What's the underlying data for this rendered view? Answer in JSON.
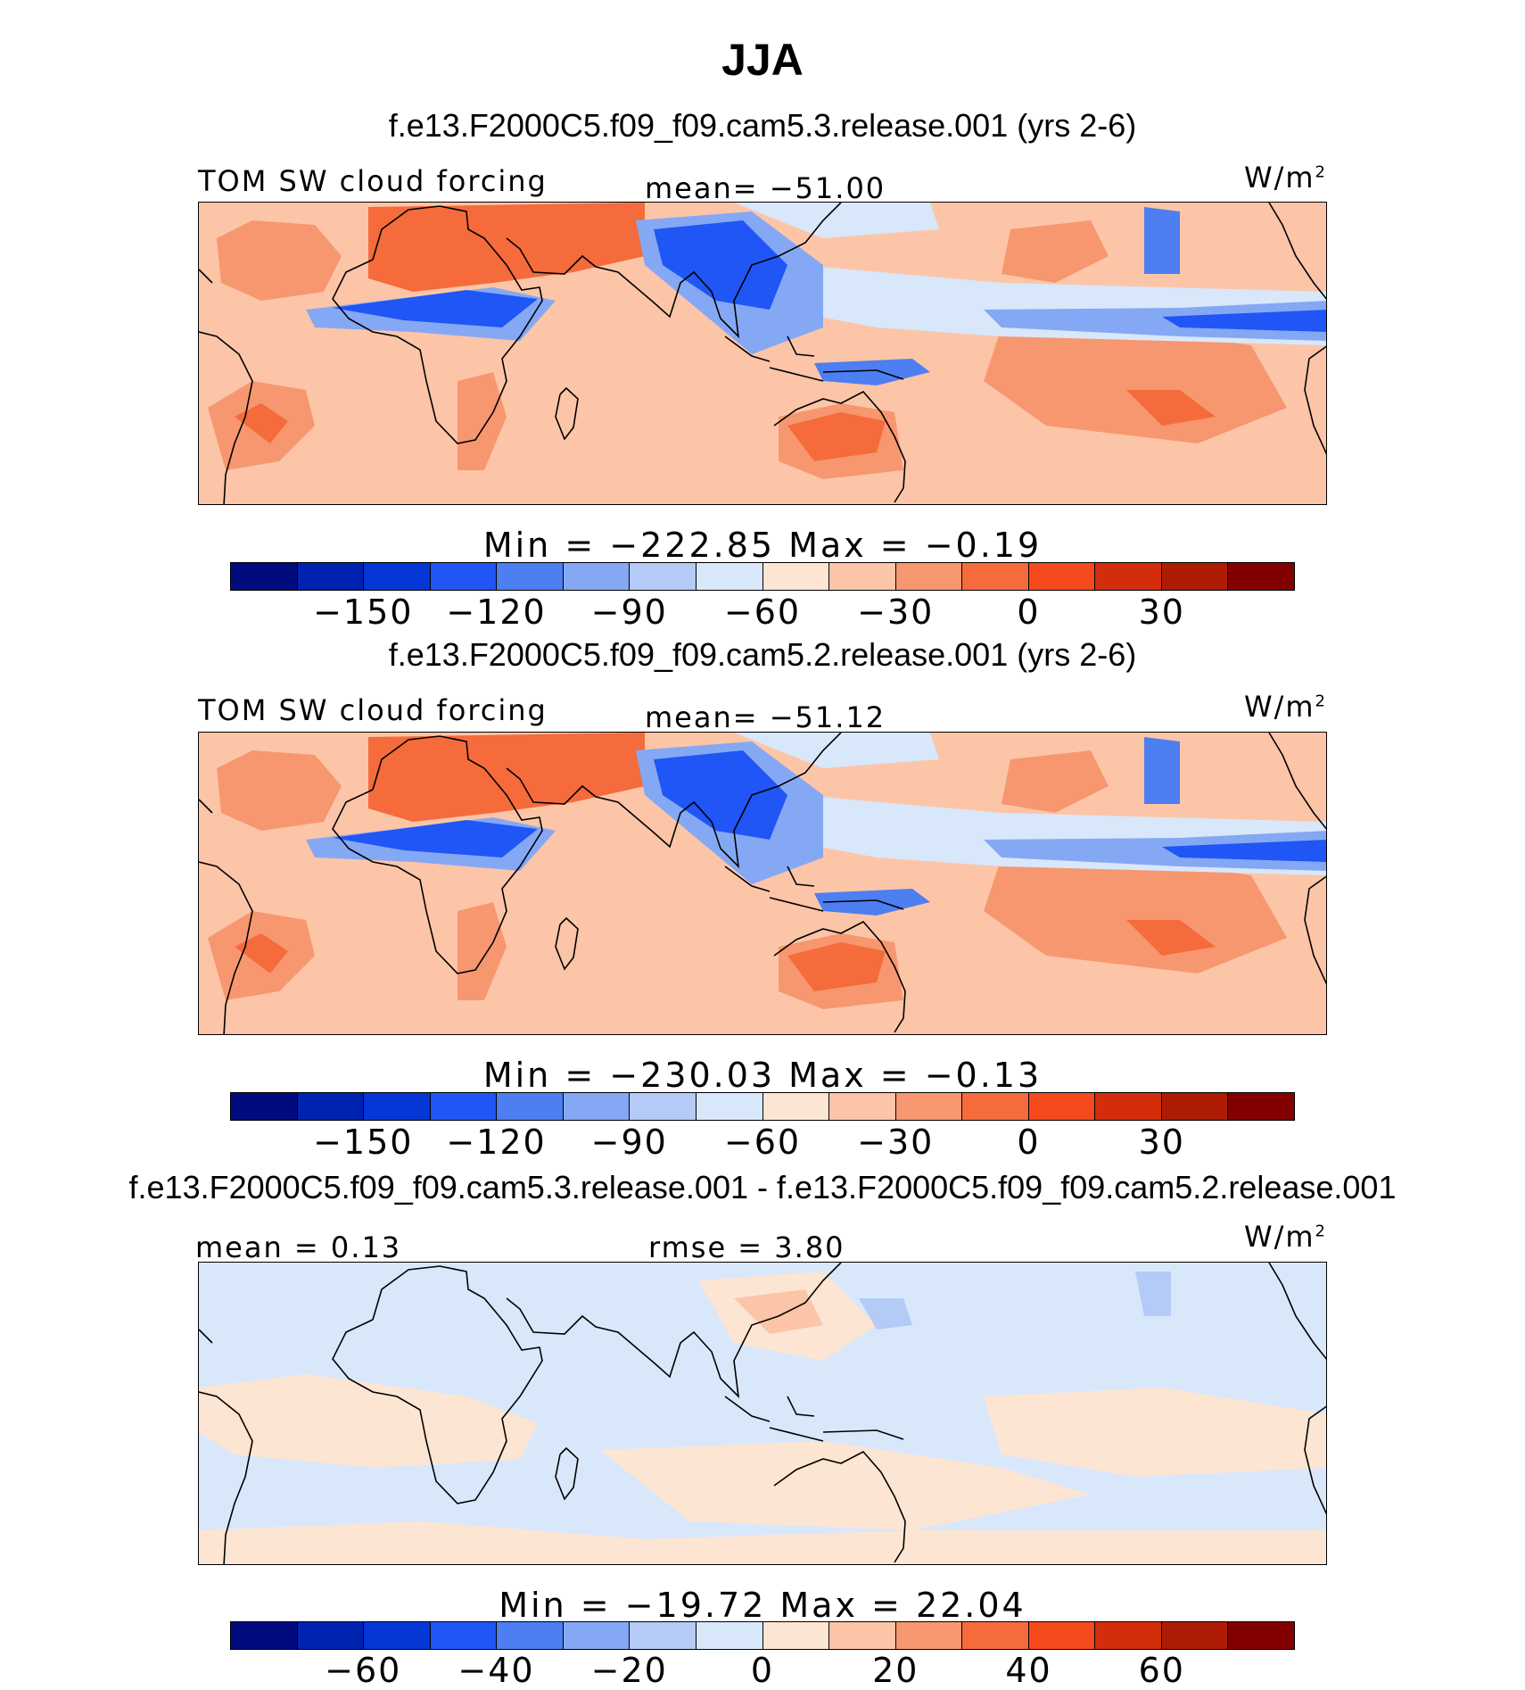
{
  "title": "JJA",
  "colors": {
    "palette": [
      "#000c7d",
      "#0022b0",
      "#0437d6",
      "#1f56f5",
      "#4d7ef2",
      "#85a8f4",
      "#b3cbf6",
      "#d9e7fb",
      "#fde5d3",
      "#fcc5a8",
      "#f7976f",
      "#f56b3c",
      "#f54a1c",
      "#d42d0b",
      "#ae1c05",
      "#830000"
    ],
    "coast": "#000000"
  },
  "panels": [
    {
      "case_title": "f.e13.F2000C5.f09_f09.cam5.3.release.001 (yrs 2-6)",
      "left_label": "TOM SW cloud forcing",
      "center_label": "mean= −51.00",
      "units_base": "W/m",
      "units_sup": "2",
      "colorbar_title": "Min  =  −222.85  Max  =    −0.19",
      "ticks": [
        "−150",
        "−120",
        "−90",
        "−60",
        "−30",
        "0",
        "30"
      ],
      "field": "ctrl"
    },
    {
      "case_title": "f.e13.F2000C5.f09_f09.cam5.2.release.001 (yrs 2-6)",
      "left_label": "TOM SW cloud forcing",
      "center_label": "mean= −51.12",
      "units_base": "W/m",
      "units_sup": "2",
      "colorbar_title": "Min  =  −230.03  Max  =    −0.13",
      "ticks": [
        "−150",
        "−120",
        "−90",
        "−60",
        "−30",
        "0",
        "30"
      ],
      "field": "ctrl"
    },
    {
      "case_title": "f.e13.F2000C5.f09_f09.cam5.3.release.001 - f.e13.F2000C5.f09_f09.cam5.2.release.001",
      "left_label": "mean  =    0.13",
      "center_label": "rmse  =    3.80",
      "units_base": "W/m",
      "units_sup": "2",
      "colorbar_title": "Min  =  −19.72  Max  =    22.04",
      "ticks": [
        "−60",
        "−40",
        "−20",
        "0",
        "20",
        "40",
        "60"
      ],
      "field": "diff"
    }
  ]
}
